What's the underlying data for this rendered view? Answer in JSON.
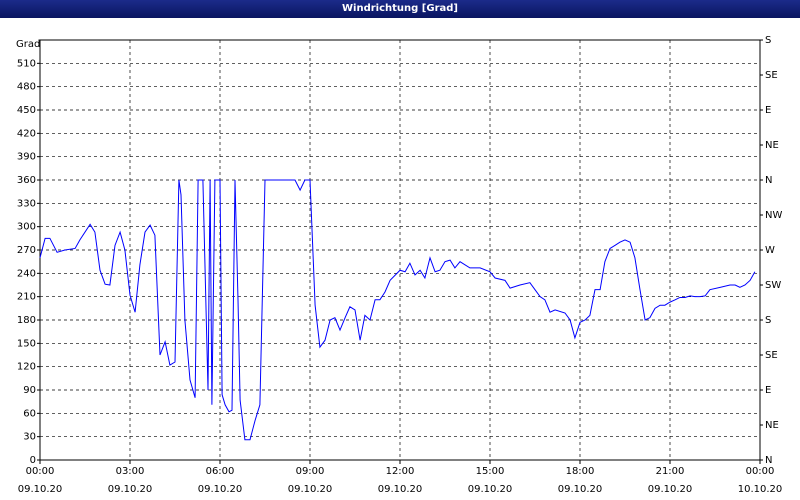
{
  "chart_data": {
    "type": "line",
    "title": "Windrichtung [Grad]",
    "y_label": "Grad",
    "x": [
      0,
      0.17,
      0.33,
      0.57,
      0.83,
      1.17,
      1.33,
      1.67,
      1.83,
      2,
      2.17,
      2.33,
      2.5,
      2.67,
      2.83,
      3,
      3.17,
      3.33,
      3.5,
      3.67,
      3.83,
      4,
      4.17,
      4.33,
      4.5,
      4.63,
      4.7,
      4.83,
      5,
      5.17,
      5.27,
      5.43,
      5.6,
      5.67,
      5.73,
      5.83,
      6,
      6.07,
      6.17,
      6.3,
      6.4,
      6.5,
      6.6,
      6.67,
      6.83,
      7,
      7.17,
      7.33,
      7.5,
      8.5,
      8.67,
      8.83,
      9,
      9.17,
      9.33,
      9.5,
      9.67,
      9.83,
      10,
      10.17,
      10.33,
      10.5,
      10.67,
      10.83,
      11,
      11.17,
      11.33,
      11.5,
      11.67,
      12,
      12.17,
      12.33,
      12.5,
      12.67,
      12.83,
      13,
      13.17,
      13.33,
      13.5,
      13.67,
      13.83,
      14,
      14.33,
      14.67,
      15,
      15.17,
      15.5,
      15.67,
      16,
      16.33,
      16.5,
      16.67,
      16.83,
      17,
      17.17,
      17.5,
      17.67,
      17.83,
      18,
      18.17,
      18.33,
      18.5,
      18.67,
      18.83,
      19,
      19.17,
      19.33,
      19.5,
      19.67,
      19.83,
      20,
      20.17,
      20.33,
      20.5,
      20.67,
      20.83,
      21,
      21.17,
      21.33,
      21.5,
      21.67,
      21.83,
      22,
      22.17,
      22.33,
      22.67,
      23,
      23.17,
      23.33,
      23.5,
      23.67,
      23.83
    ],
    "values": [
      260,
      285,
      285,
      267,
      270,
      272,
      283,
      303,
      293,
      244,
      226,
      225,
      276,
      293,
      270,
      212,
      190,
      251,
      293,
      302,
      289,
      135,
      152,
      122,
      126,
      360,
      341,
      180,
      103,
      80,
      360,
      360,
      90,
      360,
      71,
      360,
      360,
      84,
      71,
      62,
      64,
      360,
      206,
      77,
      26,
      26,
      51,
      71,
      360,
      360,
      347,
      360,
      360,
      199,
      145,
      154,
      180,
      183,
      167,
      183,
      197,
      193,
      154,
      186,
      180,
      206,
      206,
      216,
      231,
      244,
      242,
      253,
      238,
      244,
      234,
      260,
      242,
      244,
      255,
      257,
      247,
      255,
      247,
      247,
      242,
      234,
      231,
      221,
      225,
      228,
      219,
      210,
      206,
      190,
      193,
      189,
      180,
      157,
      177,
      180,
      186,
      219,
      219,
      255,
      272,
      276,
      280,
      283,
      280,
      260,
      219,
      180,
      183,
      195,
      199,
      199,
      203,
      206,
      209,
      209,
      211,
      210,
      210,
      211,
      219,
      222,
      225,
      225,
      222,
      225,
      231,
      242
    ],
    "color": "#0000ff",
    "xlim": [
      0,
      24
    ],
    "xticks": [
      {
        "value": 0,
        "label": "00:00 09.10.20"
      },
      {
        "value": 3,
        "label": "03:00 09.10.20"
      },
      {
        "value": 6,
        "label": "06:00 09.10.20"
      },
      {
        "value": 9,
        "label": "09:00 09.10.20"
      },
      {
        "value": 12,
        "label": "12:00 09.10.20"
      },
      {
        "value": 15,
        "label": "15:00 09.10.20"
      },
      {
        "value": 18,
        "label": "18:00 09.10.20"
      },
      {
        "value": 21,
        "label": "21:00 09.10.20"
      },
      {
        "value": 24,
        "label": "00:00 10.10.20"
      }
    ],
    "ylim": [
      0,
      540
    ],
    "yticks": [
      0,
      30,
      60,
      90,
      120,
      150,
      180,
      210,
      240,
      270,
      300,
      330,
      360,
      390,
      420,
      450,
      480,
      510
    ],
    "y2lim": [
      0,
      540
    ],
    "y2ticks": [
      {
        "value": 0,
        "label": "N"
      },
      {
        "value": 45,
        "label": "NE"
      },
      {
        "value": 90,
        "label": "E"
      },
      {
        "value": 135,
        "label": "SE"
      },
      {
        "value": 180,
        "label": "S"
      },
      {
        "value": 225,
        "label": "SW"
      },
      {
        "value": 270,
        "label": "W"
      },
      {
        "value": 315,
        "label": "NW"
      },
      {
        "value": 360,
        "label": "N"
      },
      {
        "value": 405,
        "label": "NE"
      },
      {
        "value": 450,
        "label": "E"
      },
      {
        "value": 495,
        "label": "SE"
      },
      {
        "value": 540,
        "label": "S"
      }
    ],
    "grid": true
  }
}
